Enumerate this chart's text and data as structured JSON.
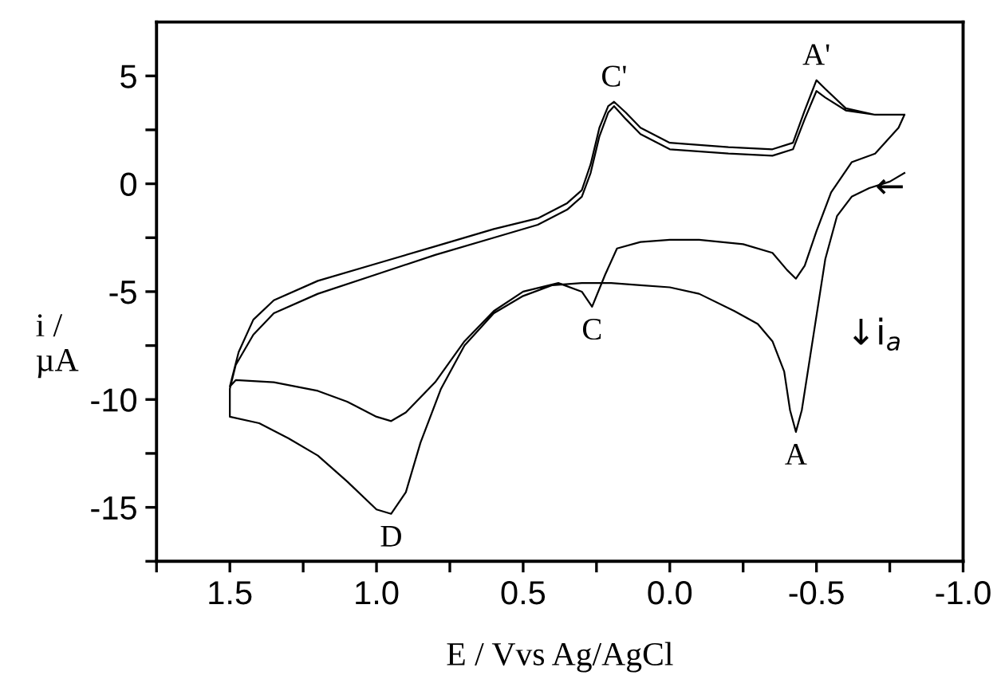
{
  "chart_data": {
    "type": "line",
    "xlabel": "E / Vvs Ag/AgCl",
    "ylabel": "i /\nµA",
    "xlim": [
      1.75,
      -1.0
    ],
    "ylim": [
      -17.5,
      7.5
    ],
    "xticks": [
      {
        "value": 1.75,
        "label": null
      },
      {
        "value": 1.5,
        "label": "1.5"
      },
      {
        "value": 1.25,
        "label": null
      },
      {
        "value": 1.0,
        "label": "1.0"
      },
      {
        "value": 0.75,
        "label": null
      },
      {
        "value": 0.5,
        "label": "0.5"
      },
      {
        "value": 0.25,
        "label": null
      },
      {
        "value": 0.0,
        "label": "0.0"
      },
      {
        "value": -0.25,
        "label": null
      },
      {
        "value": -0.5,
        "label": "-0.5"
      },
      {
        "value": -0.75,
        "label": null
      },
      {
        "value": -1.0,
        "label": "-1.0"
      }
    ],
    "yticks": [
      {
        "value": 5,
        "label": "5"
      },
      {
        "value": 2.5,
        "label": null
      },
      {
        "value": 0,
        "label": "0"
      },
      {
        "value": -2.5,
        "label": null
      },
      {
        "value": -5,
        "label": "-5"
      },
      {
        "value": -7.5,
        "label": null
      },
      {
        "value": -10,
        "label": "-10"
      },
      {
        "value": -12.5,
        "label": null
      },
      {
        "value": -15,
        "label": "-15"
      },
      {
        "value": -17.5,
        "label": null
      }
    ],
    "grid": false,
    "legend": false,
    "marker": "none",
    "line_style": "solid",
    "series": [
      {
        "color": "#000000",
        "x": [
          -0.8,
          -0.75,
          -0.68,
          -0.62,
          -0.57,
          -0.53,
          -0.49,
          -0.45,
          -0.43,
          -0.41,
          -0.39,
          -0.35,
          -0.3,
          -0.22,
          -0.1,
          0.0,
          0.1,
          0.2,
          0.3,
          0.4,
          0.5,
          0.6,
          0.7,
          0.78,
          0.85,
          0.9,
          0.95,
          1.0,
          1.1,
          1.2,
          1.3,
          1.4,
          1.5,
          1.5,
          1.48,
          1.42,
          1.35,
          1.2,
          1.0,
          0.8,
          0.6,
          0.45,
          0.35,
          0.3,
          0.27,
          0.24,
          0.21,
          0.19,
          0.15,
          0.1,
          0.0,
          -0.2,
          -0.35,
          -0.42,
          -0.46,
          -0.5,
          -0.53,
          -0.6,
          -0.7,
          -0.8,
          -0.78,
          -0.7,
          -0.62,
          -0.55,
          -0.5,
          -0.46,
          -0.43,
          -0.4,
          -0.35,
          -0.25,
          -0.1,
          0.0,
          0.1,
          0.18,
          0.22,
          0.265,
          0.3,
          0.38,
          0.5,
          0.6,
          0.7,
          0.8,
          0.9,
          0.95,
          1.0,
          1.1,
          1.2,
          1.35,
          1.48,
          1.5,
          1.47,
          1.42,
          1.35,
          1.2,
          1.0,
          0.8,
          0.6,
          0.45,
          0.35,
          0.3,
          0.27,
          0.24,
          0.21,
          0.19,
          0.15,
          0.1,
          0.0,
          -0.2,
          -0.35,
          -0.42,
          -0.46,
          -0.5,
          -0.53,
          -0.6,
          -0.7,
          -0.8
        ],
        "values": [
          0.5,
          0.1,
          -0.2,
          -0.6,
          -1.5,
          -3.5,
          -7,
          -10.5,
          -11.5,
          -10.5,
          -8.7,
          -7.3,
          -6.5,
          -5.9,
          -5.1,
          -4.8,
          -4.7,
          -4.6,
          -4.6,
          -4.7,
          -5.2,
          -6.0,
          -7.5,
          -9.5,
          -12,
          -14.3,
          -15.3,
          -15.1,
          -13.8,
          -12.6,
          -11.8,
          -11.1,
          -10.8,
          -9.5,
          -8.4,
          -7.0,
          -6.0,
          -5.1,
          -4.2,
          -3.3,
          -2.5,
          -1.9,
          -1.2,
          -0.6,
          0.5,
          2.2,
          3.3,
          3.6,
          3.0,
          2.3,
          1.6,
          1.4,
          1.3,
          1.6,
          3.0,
          4.3,
          4.0,
          3.4,
          3.2,
          3.2,
          2.6,
          1.4,
          1.0,
          -0.4,
          -2.2,
          -3.8,
          -4.4,
          -4.0,
          -3.2,
          -2.8,
          -2.6,
          -2.6,
          -2.7,
          -3.0,
          -4.2,
          -5.7,
          -5.0,
          -4.6,
          -5.0,
          -5.9,
          -7.3,
          -9.2,
          -10.6,
          -11.0,
          -10.8,
          -10.1,
          -9.6,
          -9.2,
          -9.1,
          -9.4,
          -7.8,
          -6.3,
          -5.4,
          -4.5,
          -3.7,
          -2.9,
          -2.1,
          -1.6,
          -0.9,
          -0.3,
          0.9,
          2.6,
          3.6,
          3.8,
          3.3,
          2.6,
          1.9,
          1.7,
          1.6,
          1.9,
          3.4,
          4.8,
          4.4,
          3.5,
          3.2,
          3.2
        ]
      }
    ],
    "annotations": [
      {
        "text": "C'",
        "x": 0.19,
        "y": 3.8
      },
      {
        "text": "A'",
        "x": -0.5,
        "y": 4.8
      },
      {
        "text": "C",
        "x": 0.265,
        "y": -5.7
      },
      {
        "text": "A",
        "x": -0.43,
        "y": -11.5
      },
      {
        "text": "D",
        "x": 0.95,
        "y": -15.3
      },
      {
        "text": "←",
        "x": -0.7,
        "y": -0.2
      },
      "↓i$_{a}$"
    ]
  }
}
